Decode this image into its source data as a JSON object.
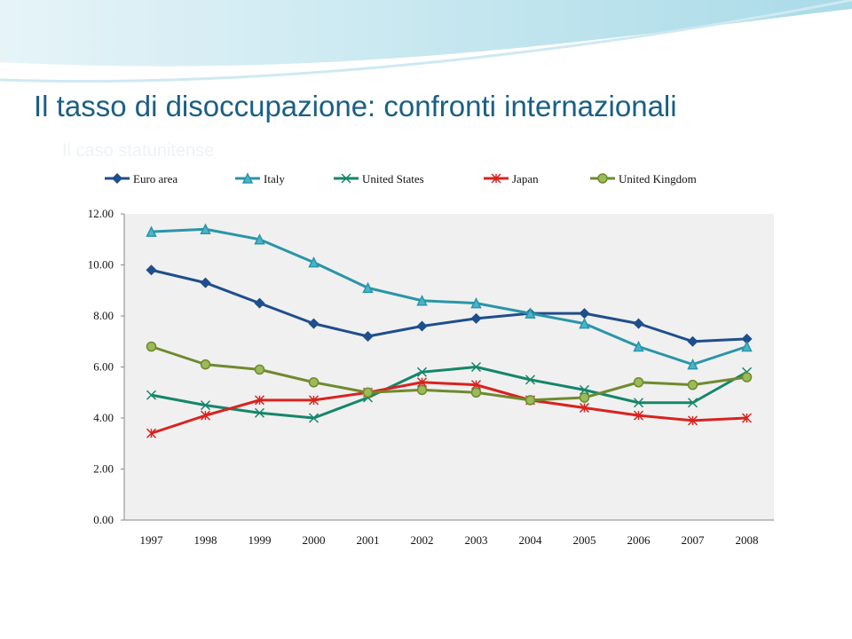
{
  "chart_data": {
    "type": "line",
    "title": "Il tasso di disoccupazione: confronti internazionali",
    "subtitle": "Il caso statunitense",
    "categories": [
      "1997",
      "1998",
      "1999",
      "2000",
      "2001",
      "2002",
      "2003",
      "2004",
      "2005",
      "2006",
      "2007",
      "2008"
    ],
    "series": [
      {
        "name": "Euro area",
        "color": "#1f4e8c",
        "marker": "diamond",
        "values": [
          9.8,
          9.3,
          8.5,
          7.7,
          7.2,
          7.6,
          7.9,
          8.1,
          8.1,
          7.7,
          7.0,
          7.1
        ]
      },
      {
        "name": "Italy",
        "color": "#2a95a8",
        "marker": "triangle",
        "values": [
          11.3,
          11.4,
          11.0,
          10.1,
          9.1,
          8.6,
          8.5,
          8.1,
          7.7,
          6.8,
          6.1,
          6.8
        ]
      },
      {
        "name": "United States",
        "color": "#15866a",
        "marker": "x",
        "values": [
          4.9,
          4.5,
          4.2,
          4.0,
          4.8,
          5.8,
          6.0,
          5.5,
          5.1,
          4.6,
          4.6,
          5.8
        ]
      },
      {
        "name": "Japan",
        "color": "#d8231f",
        "marker": "star",
        "values": [
          3.4,
          4.1,
          4.7,
          4.7,
          5.0,
          5.4,
          5.3,
          4.7,
          4.4,
          4.1,
          3.9,
          4.0
        ]
      },
      {
        "name": "United Kingdom",
        "color": "#6f8a2e",
        "marker": "circle",
        "values": [
          6.8,
          6.1,
          5.9,
          5.4,
          5.0,
          5.1,
          5.0,
          4.7,
          4.8,
          5.4,
          5.3,
          5.6
        ]
      }
    ],
    "ylim": [
      0,
      12
    ],
    "yticks": [
      {
        "value": 0,
        "label": "0.00"
      },
      {
        "value": 2,
        "label": "2.00"
      },
      {
        "value": 4,
        "label": "4.00"
      },
      {
        "value": 6,
        "label": "6.00"
      },
      {
        "value": 8,
        "label": "8.00"
      },
      {
        "value": 10,
        "label": "10.00"
      },
      {
        "value": 12,
        "label": "12.00"
      }
    ],
    "grid": false,
    "legend": "top"
  }
}
